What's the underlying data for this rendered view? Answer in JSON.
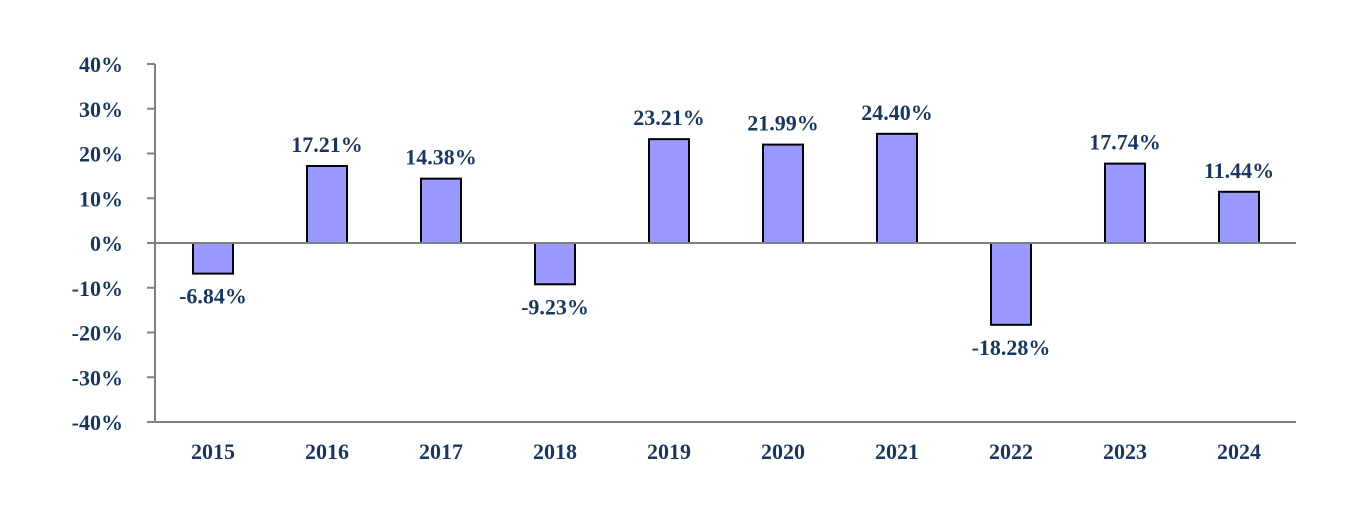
{
  "chart_data": {
    "type": "bar",
    "title": "",
    "xlabel": "",
    "ylabel": "",
    "categories": [
      "2015",
      "2016",
      "2017",
      "2018",
      "2019",
      "2020",
      "2021",
      "2022",
      "2023",
      "2024"
    ],
    "values": [
      -6.84,
      17.21,
      14.38,
      -9.23,
      23.21,
      21.99,
      24.4,
      -18.28,
      17.74,
      11.44
    ],
    "value_labels": [
      "-6.84%",
      "17.21%",
      "14.38%",
      "-9.23%",
      "23.21%",
      "21.99%",
      "24.40%",
      "-18.28%",
      "17.74%",
      "11.44%"
    ],
    "ylim": [
      -40,
      40
    ],
    "yticks": [
      40,
      30,
      20,
      10,
      0,
      -10,
      -20,
      -30,
      -40
    ],
    "ytick_labels": [
      "40%",
      "30%",
      "20%",
      "10%",
      "0%",
      "-10%",
      "-20%",
      "-30%",
      "-40%"
    ],
    "grid": false,
    "legend": "none",
    "colors": {
      "bar": "#9999ff",
      "text": "#17375e",
      "axis": "#808080"
    }
  }
}
